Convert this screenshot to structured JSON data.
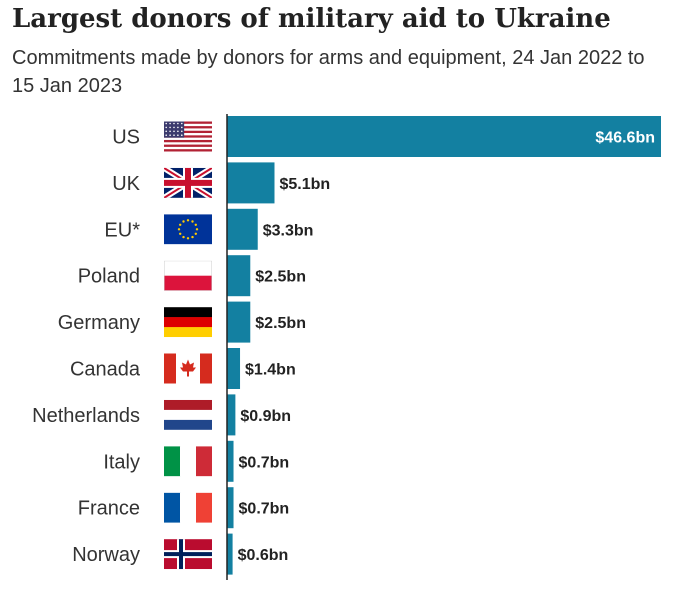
{
  "chart_data": {
    "type": "bar",
    "orientation": "horizontal",
    "title": "Largest donors of military aid to Ukraine",
    "subtitle": "Commitments made by donors for arms and equipment, 24 Jan 2022 to 15 Jan 2023",
    "xlabel": "",
    "ylabel": "",
    "unit": "$bn",
    "categories": [
      "US",
      "UK",
      "EU*",
      "Poland",
      "Germany",
      "Canada",
      "Netherlands",
      "Italy",
      "France",
      "Norway"
    ],
    "values": [
      46.6,
      5.1,
      3.3,
      2.5,
      2.5,
      1.4,
      0.9,
      0.7,
      0.7,
      0.6
    ],
    "data_labels": [
      "$46.6bn",
      "$5.1bn",
      "$3.3bn",
      "$2.5bn",
      "$2.5bn",
      "$1.4bn",
      "$0.9bn",
      "$0.7bn",
      "$0.7bn",
      "$0.6bn"
    ],
    "flags": [
      "us-flag-icon",
      "uk-flag-icon",
      "eu-flag-icon",
      "poland-flag-icon",
      "germany-flag-icon",
      "canada-flag-icon",
      "netherlands-flag-icon",
      "italy-flag-icon",
      "france-flag-icon",
      "norway-flag-icon"
    ],
    "bar_color": "#1380A1",
    "grid": false,
    "legend": "none"
  }
}
